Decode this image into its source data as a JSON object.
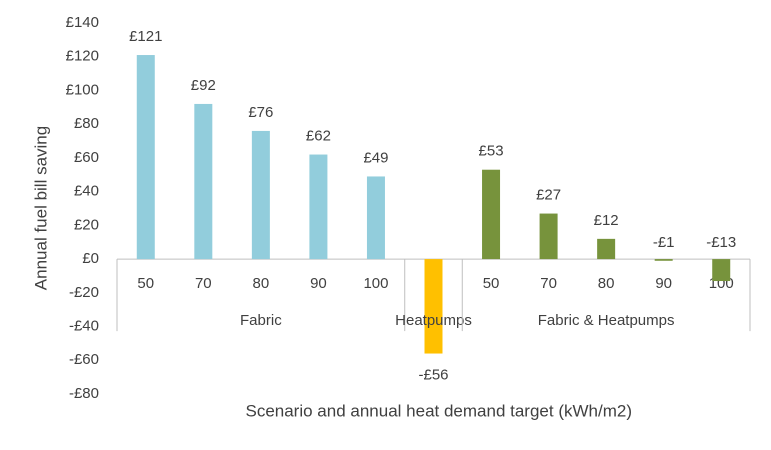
{
  "chart_data": {
    "type": "bar",
    "x_label": "Scenario and annual heat demand target (kWh/m2)",
    "y_label": "Annual fuel bill saving",
    "ylim": [
      -80,
      140
    ],
    "yticks": [
      {
        "value": -80,
        "label": "-£80"
      },
      {
        "value": -60,
        "label": "-£60"
      },
      {
        "value": -40,
        "label": "-£40"
      },
      {
        "value": -20,
        "label": "-£20"
      },
      {
        "value": 0,
        "label": "£0"
      },
      {
        "value": 20,
        "label": "£20"
      },
      {
        "value": 40,
        "label": "£40"
      },
      {
        "value": 60,
        "label": "£60"
      },
      {
        "value": 80,
        "label": "£80"
      },
      {
        "value": 100,
        "label": "£100"
      },
      {
        "value": 120,
        "label": "£120"
      },
      {
        "value": 140,
        "label": "£140"
      }
    ],
    "groups": [
      {
        "name": "Fabric",
        "color": "#92cddc",
        "categories": [
          "50",
          "70",
          "80",
          "90",
          "100"
        ],
        "values": [
          121,
          92,
          76,
          62,
          49
        ],
        "value_labels": [
          "£121",
          "£92",
          "£76",
          "£62",
          "£49"
        ]
      },
      {
        "name": "Heatpumps",
        "color": "#ffc000",
        "categories": [
          null
        ],
        "values": [
          -56
        ],
        "value_labels": [
          "-£56"
        ]
      },
      {
        "name": "Fabric & Heatpumps",
        "color": "#77933c",
        "categories": [
          "50",
          "70",
          "80",
          "90",
          "100"
        ],
        "values": [
          53,
          27,
          12,
          -1,
          -13
        ],
        "value_labels": [
          "£53",
          "£27",
          "£12",
          "-£1",
          "-£13"
        ]
      }
    ]
  }
}
